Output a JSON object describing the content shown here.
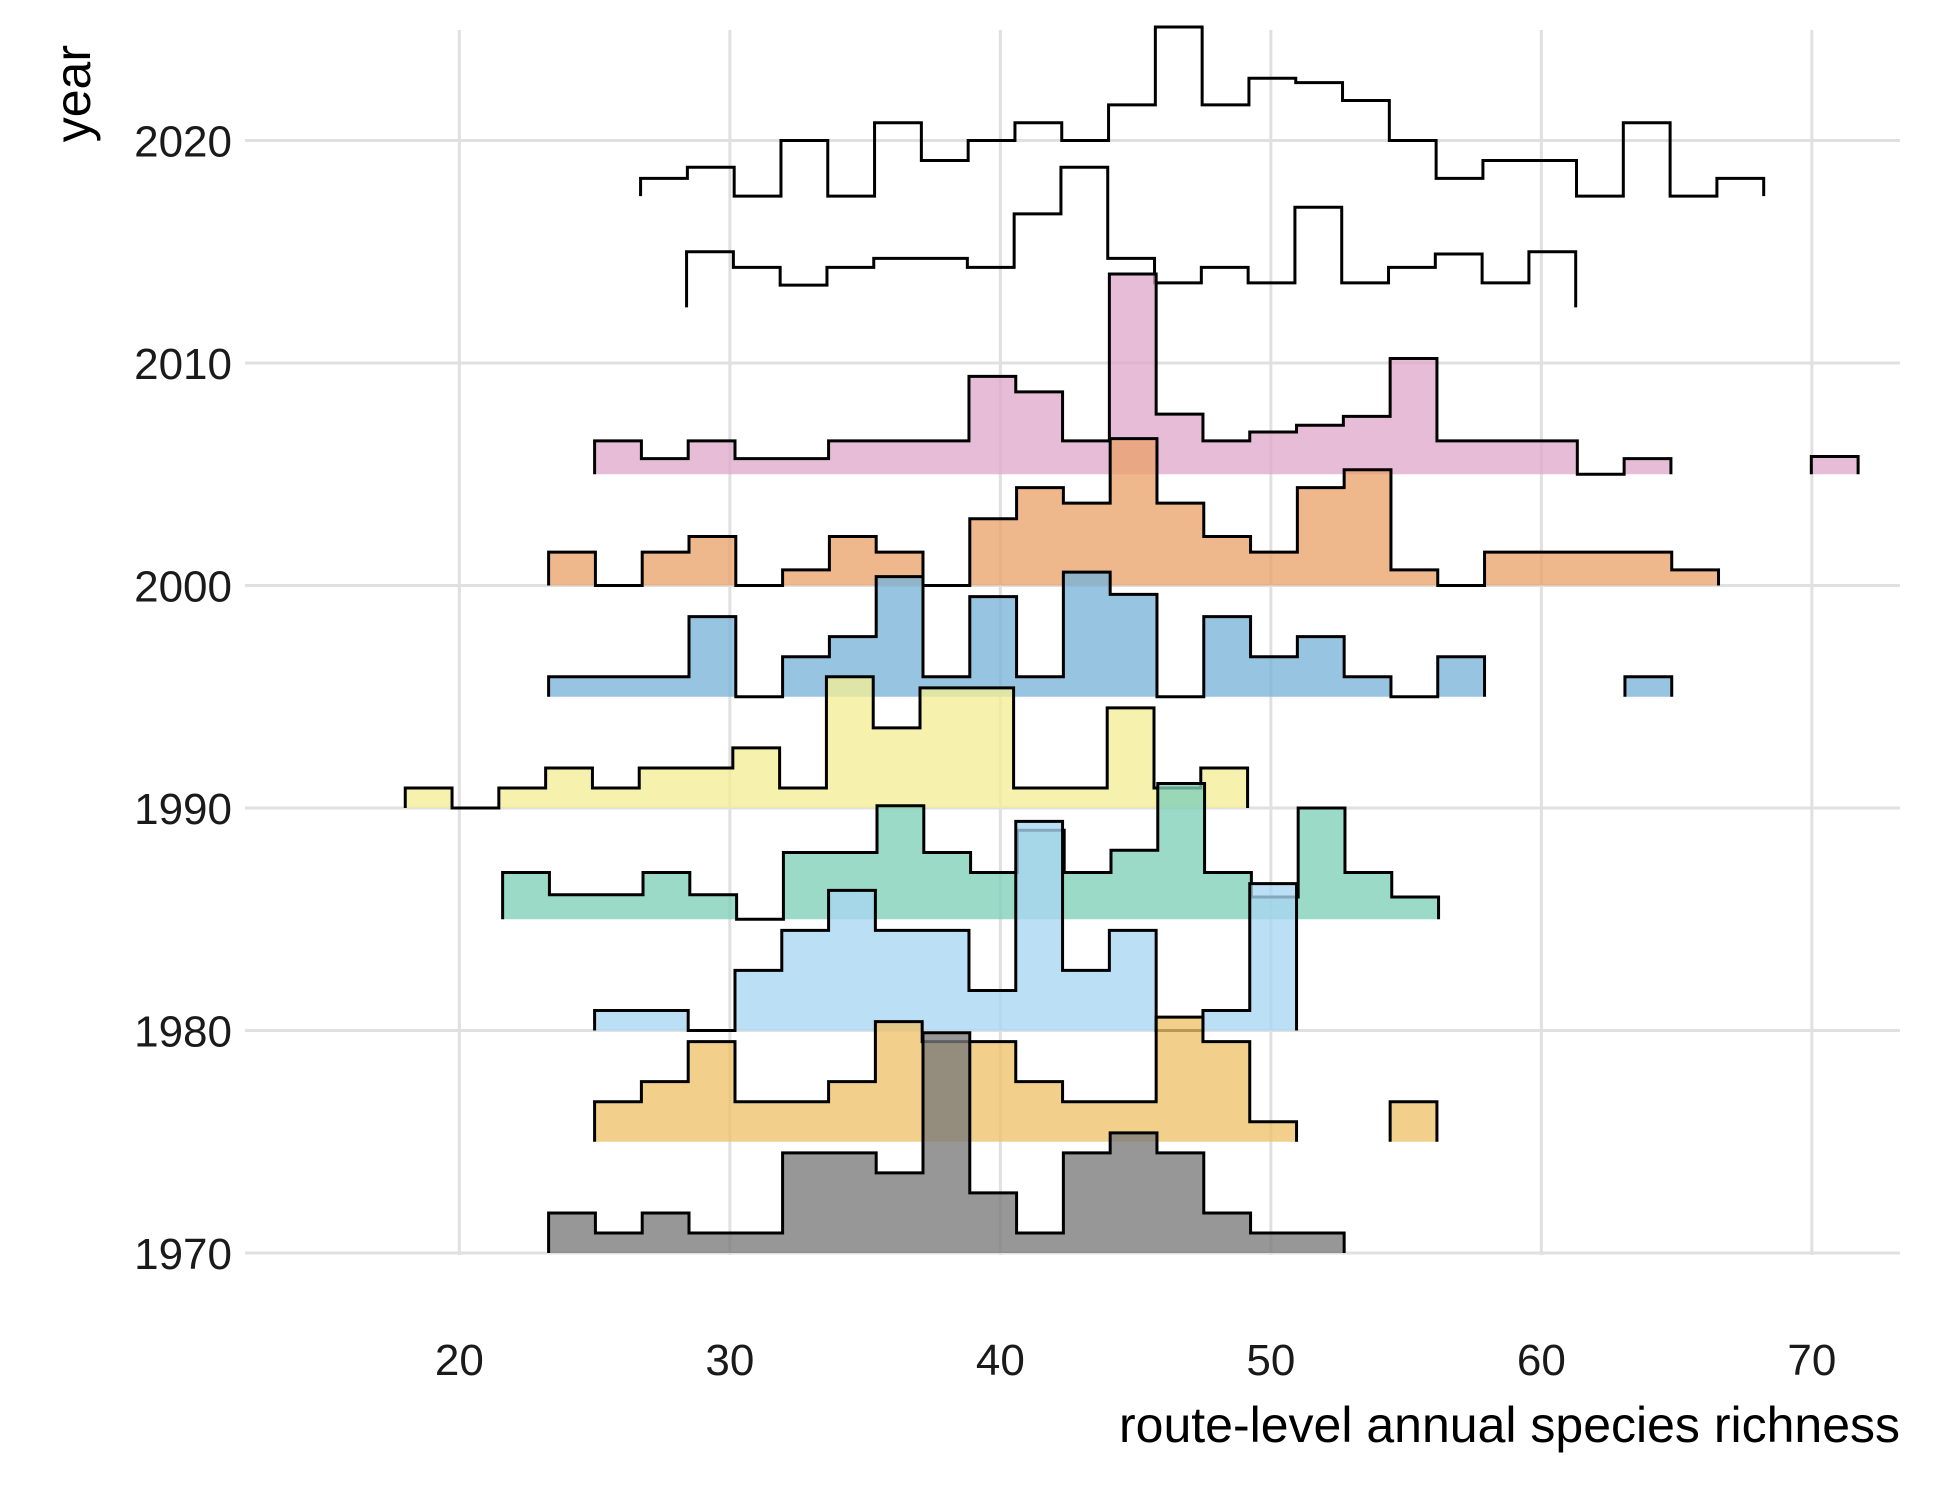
{
  "chart_data": {
    "type": "area",
    "subtype": "ridgeline step histogram",
    "xlabel": "route-level annual species richness",
    "ylabel": "year",
    "xlim": [
      13,
      74
    ],
    "ylim": [
      1965,
      2025
    ],
    "x_ticks": [
      20,
      30,
      40,
      50,
      60,
      70
    ],
    "y_ticks": [
      1970,
      1980,
      1990,
      2000,
      2010,
      2020
    ],
    "x_tick_labels": [
      "20",
      "30",
      "40",
      "50",
      "60",
      "70"
    ],
    "y_tick_labels": [
      "1970",
      "1980",
      "1990",
      "2000",
      "2010",
      "2020"
    ],
    "grid": true,
    "legend": "none",
    "bin_width": 1.73,
    "series": [
      {
        "year": 1970,
        "color": "#7a7a7a",
        "start": 23.3,
        "values": [
          1.8,
          0.9,
          1.8,
          0.9,
          0.9,
          4.5,
          4.5,
          3.6,
          9.9,
          2.7,
          0.9,
          4.5,
          5.4,
          4.5,
          1.8,
          0.9,
          0.9
        ]
      },
      {
        "year": 1975,
        "color": "#eec36a",
        "start": 25.0,
        "values": [
          1.8,
          2.7,
          4.5,
          1.8,
          1.8,
          2.7,
          5.4,
          4.5,
          4.5,
          2.7,
          1.8,
          1.8,
          5.6,
          4.5,
          0.9,
          null,
          null,
          1.8
        ]
      },
      {
        "year": 1980,
        "color": "#a8d6f2",
        "start": 25.0,
        "values": [
          0.9,
          0.9,
          0.0,
          2.7,
          4.5,
          6.3,
          4.5,
          4.5,
          1.8,
          9.4,
          2.7,
          4.5,
          0.0,
          0.9,
          6.6
        ]
      },
      {
        "year": 1985,
        "color": "#80d0b8",
        "start": 21.6,
        "values": [
          2.1,
          1.1,
          1.1,
          2.1,
          1.1,
          0.0,
          3.0,
          3.0,
          5.1,
          3.0,
          2.1,
          4.0,
          2.1,
          3.1,
          6.1,
          2.1,
          1.0,
          5.0,
          2.1,
          1.0
        ]
      },
      {
        "year": 1990,
        "color": "#f3ee96",
        "start": 18.0,
        "values": [
          0.9,
          0.0,
          0.9,
          1.8,
          0.9,
          1.8,
          1.8,
          2.7,
          0.9,
          5.9,
          3.6,
          5.4,
          5.4,
          0.9,
          0.9,
          4.5,
          0.9,
          1.8
        ]
      },
      {
        "year": 1995,
        "color": "#78b4d8",
        "start": 23.3,
        "values": [
          0.9,
          0.9,
          0.9,
          3.6,
          0.0,
          1.8,
          2.7,
          5.4,
          0.9,
          4.5,
          0.9,
          5.6,
          4.6,
          0.0,
          3.6,
          1.8,
          2.7,
          0.9,
          0.0,
          1.8,
          null,
          null,
          null,
          0.9
        ]
      },
      {
        "year": 2000,
        "color": "#e9a36c",
        "start": 23.3,
        "values": [
          1.5,
          0.0,
          1.5,
          2.2,
          0.0,
          0.7,
          2.2,
          1.5,
          0.0,
          3.0,
          4.4,
          3.7,
          6.6,
          3.7,
          2.2,
          1.5,
          4.4,
          5.2,
          0.7,
          0.0,
          1.5,
          1.5,
          1.5,
          1.5,
          0.7
        ]
      },
      {
        "year": 2005,
        "color": "#dfa9cb",
        "start": 25.0,
        "values": [
          1.5,
          0.7,
          1.5,
          0.7,
          0.7,
          1.5,
          1.5,
          1.5,
          4.4,
          3.7,
          1.5,
          9.0,
          2.7,
          1.5,
          1.9,
          2.2,
          2.6,
          5.2,
          1.5,
          1.5,
          1.5,
          0.0,
          0.7,
          null,
          null,
          null,
          0.8
        ]
      },
      {
        "year": 2012.5,
        "color": null,
        "start": 28.4,
        "values": [
          2.5,
          1.8,
          1.0,
          1.8,
          2.2,
          2.2,
          1.8,
          4.2,
          6.3,
          2.2,
          1.1,
          1.8,
          1.1,
          4.5,
          1.1,
          1.8,
          2.4,
          1.1,
          2.5
        ]
      },
      {
        "year": 2017.5,
        "color": null,
        "start": 26.7,
        "values": [
          0.8,
          1.3,
          0.0,
          2.5,
          0.0,
          3.3,
          1.6,
          2.5,
          3.3,
          2.5,
          4.1,
          7.6,
          4.1,
          5.3,
          5.1,
          4.3,
          2.5,
          0.8,
          1.6,
          1.6,
          0.0,
          3.3,
          0.0,
          0.8
        ]
      }
    ]
  }
}
